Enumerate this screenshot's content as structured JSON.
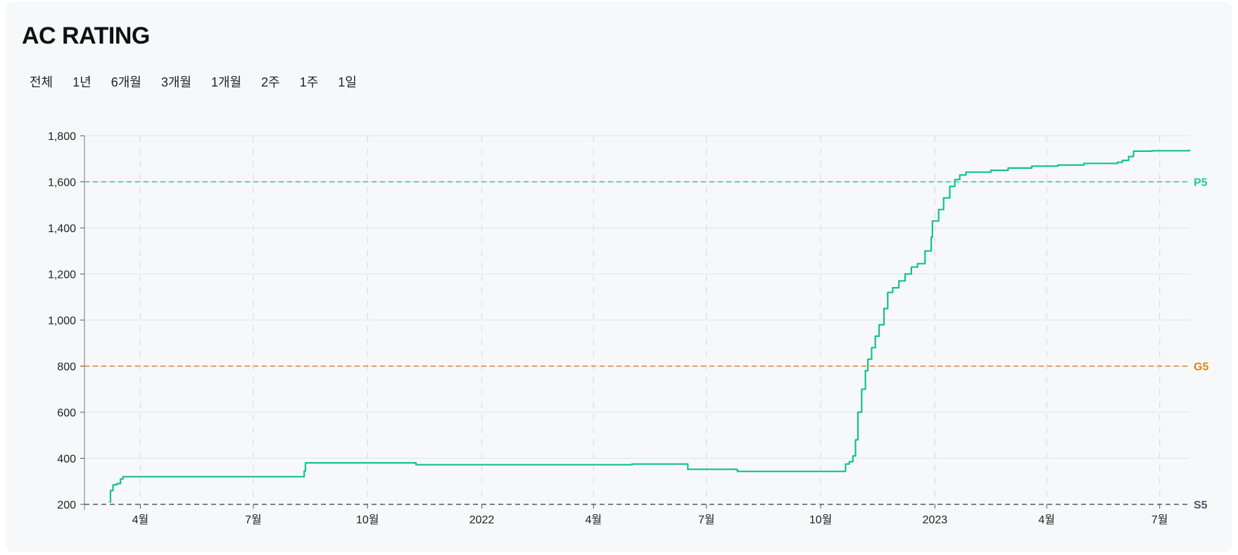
{
  "title": "AC RATING",
  "ranges": [
    "전체",
    "1년",
    "6개월",
    "3개월",
    "1개월",
    "2주",
    "1주",
    "1일"
  ],
  "chart_data": {
    "type": "line",
    "title": "",
    "xlabel": "",
    "ylabel": "",
    "ylim": [
      200,
      1800
    ],
    "xlim": [
      "2021-02-15",
      "2023-07-25"
    ],
    "y_ticks": [
      200,
      400,
      600,
      800,
      1000,
      1200,
      1400,
      1600,
      1800
    ],
    "y_tick_labels": [
      "200",
      "400",
      "600",
      "800",
      "1,000",
      "1,200",
      "1,400",
      "1,600",
      "1,800"
    ],
    "x_ticks": [
      {
        "date": "2021-04-01",
        "label": "4월"
      },
      {
        "date": "2021-07-01",
        "label": "7월"
      },
      {
        "date": "2021-10-01",
        "label": "10월"
      },
      {
        "date": "2022-01-01",
        "label": "2022"
      },
      {
        "date": "2022-04-01",
        "label": "4월"
      },
      {
        "date": "2022-07-01",
        "label": "7월"
      },
      {
        "date": "2022-10-01",
        "label": "10월"
      },
      {
        "date": "2023-01-01",
        "label": "2023"
      },
      {
        "date": "2023-04-01",
        "label": "4월"
      },
      {
        "date": "2023-07-01",
        "label": "7월"
      }
    ],
    "grid": true,
    "reference_lines": [
      {
        "label": "P5",
        "value": 1600,
        "color": "#20c997"
      },
      {
        "label": "G5",
        "value": 800,
        "color": "#d6851f"
      },
      {
        "label": "S5",
        "value": 200,
        "color": "#4a5a6a"
      }
    ],
    "series": [
      {
        "color": "#10c48a",
        "points": [
          [
            "2021-03-07",
            210
          ],
          [
            "2021-03-08",
            260
          ],
          [
            "2021-03-10",
            285
          ],
          [
            "2021-03-13",
            290
          ],
          [
            "2021-03-16",
            310
          ],
          [
            "2021-03-18",
            320
          ],
          [
            "2021-08-10",
            320
          ],
          [
            "2021-08-11",
            345
          ],
          [
            "2021-08-12",
            380
          ],
          [
            "2021-11-08",
            380
          ],
          [
            "2021-11-09",
            372
          ],
          [
            "2022-05-01",
            372
          ],
          [
            "2022-05-02",
            375
          ],
          [
            "2022-06-15",
            375
          ],
          [
            "2022-06-16",
            352
          ],
          [
            "2022-07-25",
            350
          ],
          [
            "2022-07-26",
            343
          ],
          [
            "2022-10-19",
            343
          ],
          [
            "2022-10-21",
            375
          ],
          [
            "2022-10-24",
            385
          ],
          [
            "2022-10-27",
            410
          ],
          [
            "2022-10-29",
            480
          ],
          [
            "2022-10-31",
            600
          ],
          [
            "2022-11-03",
            700
          ],
          [
            "2022-11-06",
            780
          ],
          [
            "2022-11-08",
            830
          ],
          [
            "2022-11-11",
            880
          ],
          [
            "2022-11-14",
            930
          ],
          [
            "2022-11-17",
            980
          ],
          [
            "2022-11-21",
            1050
          ],
          [
            "2022-11-24",
            1120
          ],
          [
            "2022-11-28",
            1140
          ],
          [
            "2022-12-03",
            1170
          ],
          [
            "2022-12-08",
            1200
          ],
          [
            "2022-12-13",
            1230
          ],
          [
            "2022-12-18",
            1245
          ],
          [
            "2022-12-21",
            1245
          ],
          [
            "2022-12-24",
            1300
          ],
          [
            "2022-12-29",
            1360
          ],
          [
            "2022-12-30",
            1430
          ],
          [
            "2023-01-04",
            1480
          ],
          [
            "2023-01-08",
            1530
          ],
          [
            "2023-01-13",
            1580
          ],
          [
            "2023-01-17",
            1610
          ],
          [
            "2023-01-21",
            1630
          ],
          [
            "2023-01-26",
            1642
          ],
          [
            "2023-02-15",
            1650
          ],
          [
            "2023-03-01",
            1660
          ],
          [
            "2023-03-20",
            1668
          ],
          [
            "2023-04-10",
            1673
          ],
          [
            "2023-05-01",
            1680
          ],
          [
            "2023-05-28",
            1685
          ],
          [
            "2023-06-01",
            1693
          ],
          [
            "2023-06-06",
            1710
          ],
          [
            "2023-06-10",
            1733
          ],
          [
            "2023-06-25",
            1735
          ],
          [
            "2023-07-25",
            1740
          ]
        ]
      }
    ]
  }
}
